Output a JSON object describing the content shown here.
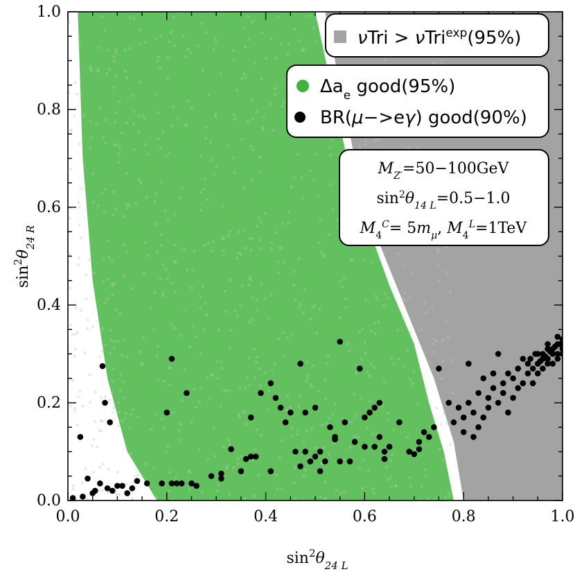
{
  "chart_data": {
    "type": "scatter",
    "xlabel": {
      "base": "sin",
      "sup": "2",
      "theta": "θ",
      "sub": "24 L"
    },
    "ylabel": {
      "base": "sin",
      "sup": "2",
      "theta": "θ",
      "sub": "24 R"
    },
    "xlim": [
      0.0,
      1.0
    ],
    "ylim": [
      0.0,
      1.0
    ],
    "xticks": [
      "0.0",
      "0.2",
      "0.4",
      "0.6",
      "0.8",
      "1.0"
    ],
    "yticks": [
      "0.0",
      "0.2",
      "0.4",
      "0.6",
      "0.8",
      "1.0"
    ],
    "grid": false,
    "colors": {
      "excluded_region": "#a3a3a3",
      "ae_good": "#3fb33a",
      "br_good": "#000000"
    },
    "legend_excluded": {
      "placement": "top-right",
      "label_prefix": "ν",
      "label_mid": "Tri > ",
      "label_nu2": "ν",
      "label_tri2": "Tri",
      "label_sup": "exp",
      "label_suffix": "(95%)"
    },
    "legend_points": {
      "placement": "top-right",
      "entries": [
        {
          "symbol": "Δa",
          "sub": "e",
          "text": " good(95%)"
        },
        {
          "symbol": "BR(",
          "greek": "μ",
          "mid": "−>e",
          "greek2": "γ",
          "text": ") good(90%)"
        }
      ]
    },
    "annotation": [
      "M_Z' = 50−100GeV",
      "sin²θ14 L = 0.5−1.0",
      "M4^C = 5 mμ, M4^L = 1TeV"
    ],
    "annotation_parts": {
      "line1": {
        "m": "M",
        "sub": "Z′",
        "rest": "=50−100GeV"
      },
      "line2": {
        "sin": "sin",
        "sup": "2",
        "theta": "θ",
        "sub": "14 L",
        "rest": "=0.5−1.0"
      },
      "line3": {
        "m1": "M",
        "sub1": "4",
        "sup1": "C",
        "mid": "= 5",
        "m2": "m",
        "sub2": "μ",
        "sep": ", ",
        "m3": "M",
        "sub3": "4",
        "sup3": "L",
        "rest": "=1TeV"
      }
    },
    "excluded_boundary": [
      [
        0.52,
        1.0
      ],
      [
        0.55,
        0.85
      ],
      [
        0.58,
        0.7
      ],
      [
        0.62,
        0.55
      ],
      [
        0.68,
        0.4
      ],
      [
        0.74,
        0.25
      ],
      [
        0.78,
        0.12
      ],
      [
        0.8,
        0.0
      ]
    ],
    "green_fill_boundary": [
      [
        0.0,
        1.0
      ],
      [
        0.02,
        1.0
      ],
      [
        0.5,
        1.0
      ],
      [
        0.53,
        0.86
      ],
      [
        0.56,
        0.72
      ],
      [
        0.6,
        0.58
      ],
      [
        0.65,
        0.44
      ],
      [
        0.7,
        0.32
      ],
      [
        0.73,
        0.2
      ],
      [
        0.76,
        0.1
      ],
      [
        0.78,
        0.0
      ],
      [
        0.18,
        0.0
      ],
      [
        0.12,
        0.1
      ],
      [
        0.08,
        0.25
      ],
      [
        0.05,
        0.45
      ],
      [
        0.03,
        0.7
      ],
      [
        0.02,
        1.0
      ]
    ],
    "series_br": [
      [
        0.01,
        0.005
      ],
      [
        0.025,
        0.13
      ],
      [
        0.03,
        0.008
      ],
      [
        0.04,
        0.045
      ],
      [
        0.05,
        0.015
      ],
      [
        0.055,
        0.02
      ],
      [
        0.065,
        0.035
      ],
      [
        0.07,
        0.275
      ],
      [
        0.075,
        0.2
      ],
      [
        0.08,
        0.025
      ],
      [
        0.085,
        0.16
      ],
      [
        0.09,
        0.02
      ],
      [
        0.1,
        0.03
      ],
      [
        0.11,
        0.03
      ],
      [
        0.12,
        0.015
      ],
      [
        0.13,
        0.025
      ],
      [
        0.14,
        0.04
      ],
      [
        0.16,
        0.035
      ],
      [
        0.19,
        0.035
      ],
      [
        0.2,
        0.18
      ],
      [
        0.21,
        0.29
      ],
      [
        0.21,
        0.035
      ],
      [
        0.22,
        0.035
      ],
      [
        0.23,
        0.035
      ],
      [
        0.24,
        0.22
      ],
      [
        0.25,
        0.035
      ],
      [
        0.26,
        0.03
      ],
      [
        0.29,
        0.05
      ],
      [
        0.31,
        0.055
      ],
      [
        0.31,
        0.045
      ],
      [
        0.33,
        0.105
      ],
      [
        0.35,
        0.06
      ],
      [
        0.36,
        0.085
      ],
      [
        0.37,
        0.09
      ],
      [
        0.37,
        0.17
      ],
      [
        0.38,
        0.09
      ],
      [
        0.39,
        0.22
      ],
      [
        0.41,
        0.24
      ],
      [
        0.41,
        0.06
      ],
      [
        0.42,
        0.21
      ],
      [
        0.43,
        0.19
      ],
      [
        0.44,
        0.16
      ],
      [
        0.45,
        0.18
      ],
      [
        0.46,
        0.1
      ],
      [
        0.47,
        0.28
      ],
      [
        0.47,
        0.07
      ],
      [
        0.48,
        0.1
      ],
      [
        0.48,
        0.18
      ],
      [
        0.49,
        0.08
      ],
      [
        0.5,
        0.09
      ],
      [
        0.5,
        0.19
      ],
      [
        0.51,
        0.1
      ],
      [
        0.51,
        0.06
      ],
      [
        0.52,
        0.08
      ],
      [
        0.53,
        0.15
      ],
      [
        0.54,
        0.13
      ],
      [
        0.54,
        0.125
      ],
      [
        0.55,
        0.08
      ],
      [
        0.55,
        0.325
      ],
      [
        0.56,
        0.16
      ],
      [
        0.57,
        0.08
      ],
      [
        0.58,
        0.12
      ],
      [
        0.59,
        0.27
      ],
      [
        0.6,
        0.17
      ],
      [
        0.6,
        0.11
      ],
      [
        0.61,
        0.18
      ],
      [
        0.62,
        0.11
      ],
      [
        0.62,
        0.19
      ],
      [
        0.63,
        0.2
      ],
      [
        0.63,
        0.13
      ],
      [
        0.64,
        0.1
      ],
      [
        0.64,
        0.085
      ],
      [
        0.65,
        0.11
      ],
      [
        0.67,
        0.16
      ],
      [
        0.69,
        0.1
      ],
      [
        0.7,
        0.095
      ],
      [
        0.71,
        0.105
      ],
      [
        0.71,
        0.12
      ],
      [
        0.72,
        0.14
      ],
      [
        0.73,
        0.13
      ],
      [
        0.74,
        0.15
      ],
      [
        0.75,
        0.27
      ],
      [
        0.77,
        0.2
      ],
      [
        0.78,
        0.16
      ],
      [
        0.79,
        0.19
      ],
      [
        0.8,
        0.17
      ],
      [
        0.8,
        0.14
      ],
      [
        0.81,
        0.2
      ],
      [
        0.81,
        0.28
      ],
      [
        0.82,
        0.13
      ],
      [
        0.82,
        0.18
      ],
      [
        0.83,
        0.22
      ],
      [
        0.83,
        0.15
      ],
      [
        0.84,
        0.25
      ],
      [
        0.84,
        0.17
      ],
      [
        0.85,
        0.21
      ],
      [
        0.85,
        0.19
      ],
      [
        0.86,
        0.26
      ],
      [
        0.86,
        0.23
      ],
      [
        0.87,
        0.2
      ],
      [
        0.87,
        0.3
      ],
      [
        0.88,
        0.24
      ],
      [
        0.88,
        0.22
      ],
      [
        0.89,
        0.18
      ],
      [
        0.89,
        0.26
      ],
      [
        0.9,
        0.25
      ],
      [
        0.9,
        0.21
      ],
      [
        0.91,
        0.27
      ],
      [
        0.91,
        0.23
      ],
      [
        0.92,
        0.24
      ],
      [
        0.92,
        0.29
      ],
      [
        0.93,
        0.26
      ],
      [
        0.93,
        0.28
      ],
      [
        0.94,
        0.27
      ],
      [
        0.94,
        0.24
      ],
      [
        0.95,
        0.3
      ],
      [
        0.95,
        0.28
      ],
      [
        0.95,
        0.26
      ],
      [
        0.96,
        0.29
      ],
      [
        0.96,
        0.3
      ],
      [
        0.96,
        0.27
      ],
      [
        0.97,
        0.28
      ],
      [
        0.97,
        0.31
      ],
      [
        0.97,
        0.29
      ],
      [
        0.98,
        0.3
      ],
      [
        0.98,
        0.28
      ],
      [
        0.98,
        0.31
      ],
      [
        0.99,
        0.3
      ],
      [
        0.99,
        0.32
      ],
      [
        0.99,
        0.29
      ],
      [
        1.0,
        0.31
      ],
      [
        1.0,
        0.33
      ],
      [
        1.0,
        0.3
      ],
      [
        0.995,
        0.32
      ],
      [
        0.985,
        0.315
      ],
      [
        0.975,
        0.305
      ],
      [
        0.965,
        0.295
      ],
      [
        0.955,
        0.285
      ],
      [
        0.945,
        0.3
      ],
      [
        0.935,
        0.29
      ],
      [
        0.97,
        0.32
      ],
      [
        0.99,
        0.335
      ]
    ]
  }
}
